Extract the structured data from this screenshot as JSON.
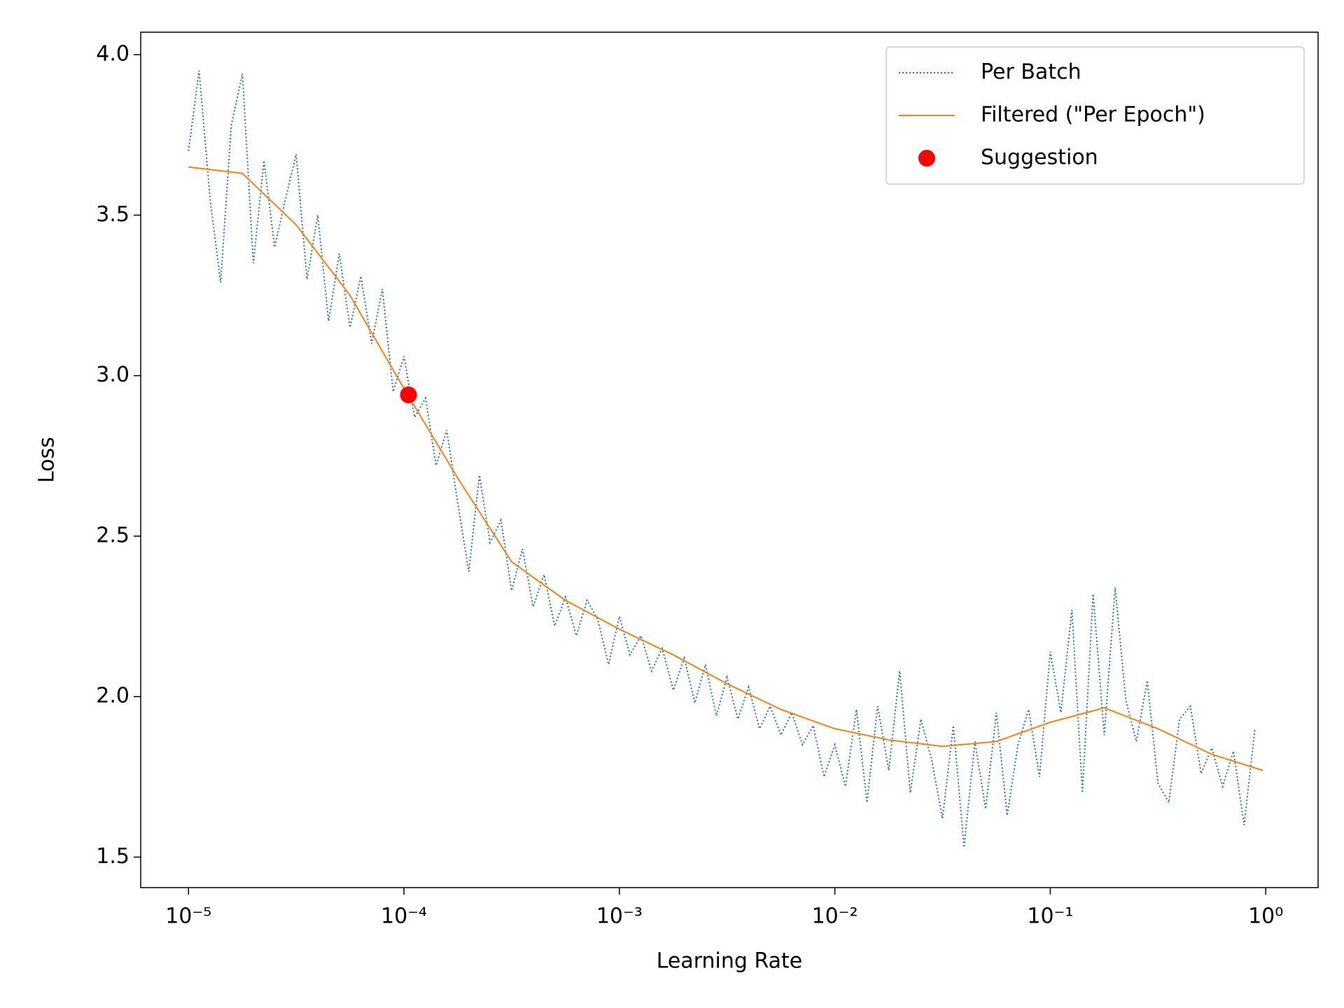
{
  "chart_data": {
    "type": "line",
    "xlabel": "Learning Rate",
    "ylabel": "Loss",
    "xscale": "log",
    "xlim": [
      6e-06,
      1.75
    ],
    "ylim": [
      1.405,
      4.07
    ],
    "xticks": [
      {
        "value": 1e-05,
        "label": "10⁻⁵"
      },
      {
        "value": 0.0001,
        "label": "10⁻⁴"
      },
      {
        "value": 0.001,
        "label": "10⁻³"
      },
      {
        "value": 0.01,
        "label": "10⁻²"
      },
      {
        "value": 0.1,
        "label": "10⁻¹"
      },
      {
        "value": 1,
        "label": "10⁰"
      }
    ],
    "yticks": [
      1.5,
      {
        "value": 2,
        "label": "2.0"
      },
      2.5,
      {
        "value": 3,
        "label": "3.0"
      },
      3.5,
      {
        "value": 4,
        "label": "4.0"
      }
    ],
    "grid": false,
    "legend": "upper right",
    "series": [
      {
        "name": "Per Batch",
        "color": "#1f77b4",
        "linestyle": "dotted",
        "x": [
          1e-05,
          1.12e-05,
          1.26e-05,
          1.41e-05,
          1.58e-05,
          1.78e-05,
          2e-05,
          2.24e-05,
          2.51e-05,
          2.82e-05,
          3.16e-05,
          3.55e-05,
          3.98e-05,
          4.47e-05,
          5.01e-05,
          5.62e-05,
          6.31e-05,
          7.08e-05,
          7.94e-05,
          8.91e-05,
          0.0001,
          0.000112,
          0.000126,
          0.000141,
          0.000158,
          0.000178,
          0.0002,
          0.000224,
          0.000251,
          0.000282,
          0.000316,
          0.000355,
          0.000398,
          0.000447,
          0.000501,
          0.000562,
          0.000631,
          0.000708,
          0.000794,
          0.000891,
          0.001,
          0.00112,
          0.00126,
          0.00141,
          0.00158,
          0.00178,
          0.002,
          0.00224,
          0.00251,
          0.00282,
          0.00316,
          0.00355,
          0.00398,
          0.00447,
          0.00501,
          0.00562,
          0.00631,
          0.00708,
          0.00794,
          0.00891,
          0.01,
          0.0112,
          0.0126,
          0.0141,
          0.0158,
          0.0178,
          0.02,
          0.0224,
          0.0251,
          0.0282,
          0.0316,
          0.0355,
          0.0398,
          0.0447,
          0.0501,
          0.0562,
          0.0631,
          0.0708,
          0.0794,
          0.0891,
          0.1,
          0.112,
          0.126,
          0.141,
          0.158,
          0.178,
          0.2,
          0.224,
          0.251,
          0.282,
          0.316,
          0.355,
          0.398,
          0.447,
          0.501,
          0.562,
          0.631,
          0.708,
          0.794,
          0.891
        ],
        "values": [
          3.7,
          3.95,
          3.55,
          3.29,
          3.78,
          3.94,
          3.35,
          3.67,
          3.4,
          3.55,
          3.69,
          3.3,
          3.5,
          3.17,
          3.38,
          3.15,
          3.31,
          3.1,
          3.27,
          2.95,
          3.06,
          2.87,
          2.93,
          2.72,
          2.83,
          2.6,
          2.39,
          2.69,
          2.48,
          2.55,
          2.33,
          2.46,
          2.28,
          2.38,
          2.22,
          2.31,
          2.19,
          2.3,
          2.24,
          2.1,
          2.25,
          2.13,
          2.19,
          2.08,
          2.15,
          2.02,
          2.12,
          1.98,
          2.1,
          1.94,
          2.06,
          1.93,
          2.03,
          1.9,
          1.97,
          1.88,
          1.95,
          1.85,
          1.91,
          1.75,
          1.85,
          1.72,
          1.96,
          1.67,
          1.97,
          1.77,
          2.08,
          1.7,
          1.93,
          1.8,
          1.62,
          1.91,
          1.53,
          1.86,
          1.65,
          1.95,
          1.63,
          1.85,
          1.96,
          1.75,
          2.14,
          1.95,
          2.27,
          1.7,
          2.32,
          1.88,
          2.34,
          1.99,
          1.86,
          2.05,
          1.73,
          1.67,
          1.93,
          1.97,
          1.76,
          1.84,
          1.72,
          1.83,
          1.6,
          1.9
        ]
      },
      {
        "name": "Filtered (\"Per Epoch\")",
        "color": "#ff7f0e",
        "linestyle": "solid",
        "x": [
          1e-05,
          1.78e-05,
          3.16e-05,
          5.62e-05,
          0.0001,
          0.000178,
          0.000316,
          0.000562,
          0.001,
          0.00178,
          0.00316,
          0.00562,
          0.01,
          0.0178,
          0.0316,
          0.0562,
          0.1,
          0.178,
          0.316,
          0.562,
          0.97
        ],
        "values": [
          3.65,
          3.63,
          3.47,
          3.25,
          2.96,
          2.68,
          2.42,
          2.3,
          2.21,
          2.13,
          2.04,
          1.96,
          1.9,
          1.865,
          1.845,
          1.86,
          1.92,
          1.965,
          1.9,
          1.82,
          1.77
        ]
      },
      {
        "name": "Suggestion",
        "color": "#ff0000",
        "linestyle": "none",
        "marker": "o",
        "x": [
          0.000105
        ],
        "values": [
          2.94
        ]
      }
    ]
  }
}
